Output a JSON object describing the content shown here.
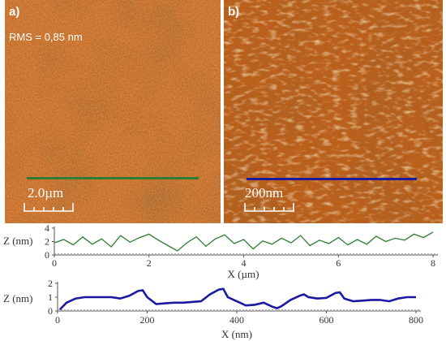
{
  "panel_a": {
    "label": "a)",
    "rms": "RMS = 0,85 nm",
    "scalebar_label": "2.0µm"
  },
  "panel_b": {
    "label": "b)",
    "scalebar_label": "200nm"
  },
  "colors": {
    "profile_a": "#2e7d32",
    "profile_b": "#1a1aa0",
    "afm_low": "#7a3206",
    "afm_high": "#f6c47c"
  },
  "chart_data": [
    {
      "type": "line",
      "xlabel": "X (µm)",
      "ylabel": "Z (nm)",
      "xlim": [
        0,
        8
      ],
      "ylim": [
        0,
        4
      ],
      "xticks": [
        0,
        2,
        4,
        6,
        8
      ],
      "yticks": [
        0,
        2,
        4
      ],
      "grid": false,
      "series": [
        {
          "x": [
            0,
            0.2,
            0.4,
            0.6,
            0.8,
            1.0,
            1.2,
            1.4,
            1.6,
            1.8,
            2.0,
            2.2,
            2.4,
            2.6,
            2.8,
            3.0,
            3.2,
            3.4,
            3.6,
            3.8,
            4.0,
            4.2,
            4.4,
            4.6,
            4.8,
            5.0,
            5.2,
            5.4,
            5.6,
            5.8,
            6.0,
            6.2,
            6.4,
            6.6,
            6.8,
            7.0,
            7.2,
            7.4,
            7.6,
            7.8,
            8.0
          ],
          "y": [
            1.8,
            2.3,
            1.5,
            2.7,
            1.6,
            2.4,
            1.2,
            2.9,
            1.9,
            2.6,
            3.1,
            2.2,
            1.4,
            0.6,
            1.8,
            2.7,
            1.3,
            2.4,
            3.0,
            1.7,
            2.3,
            0.9,
            2.1,
            1.6,
            2.5,
            1.8,
            2.9,
            1.4,
            2.2,
            1.7,
            2.6,
            1.5,
            2.3,
            1.6,
            2.8,
            2.0,
            2.5,
            2.2,
            3.1,
            2.6,
            3.4
          ]
        }
      ]
    },
    {
      "type": "line",
      "xlabel": "X (nm)",
      "ylabel": "Z (nm)",
      "xlim": [
        0,
        800
      ],
      "ylim": [
        0,
        2
      ],
      "xticks": [
        0,
        200,
        400,
        600,
        800
      ],
      "yticks": [
        0,
        1,
        2
      ],
      "grid": false,
      "series": [
        {
          "x": [
            5,
            20,
            40,
            60,
            80,
            100,
            120,
            140,
            160,
            180,
            190,
            200,
            220,
            240,
            260,
            280,
            300,
            320,
            340,
            360,
            370,
            380,
            400,
            420,
            440,
            460,
            480,
            490,
            500,
            520,
            540,
            550,
            560,
            580,
            600,
            620,
            630,
            640,
            660,
            680,
            700,
            720,
            740,
            760,
            780,
            800
          ],
          "y": [
            0.1,
            0.6,
            0.9,
            1.0,
            1.0,
            1.0,
            1.0,
            0.9,
            1.1,
            1.45,
            1.5,
            1.0,
            0.5,
            0.55,
            0.6,
            0.6,
            0.65,
            0.7,
            1.2,
            1.55,
            1.6,
            1.0,
            0.7,
            0.4,
            0.45,
            0.6,
            0.3,
            0.2,
            0.35,
            0.8,
            1.1,
            1.2,
            1.0,
            0.9,
            0.95,
            1.3,
            1.35,
            0.9,
            0.7,
            0.75,
            0.8,
            0.8,
            0.7,
            0.9,
            1.0,
            1.0
          ]
        }
      ]
    }
  ]
}
